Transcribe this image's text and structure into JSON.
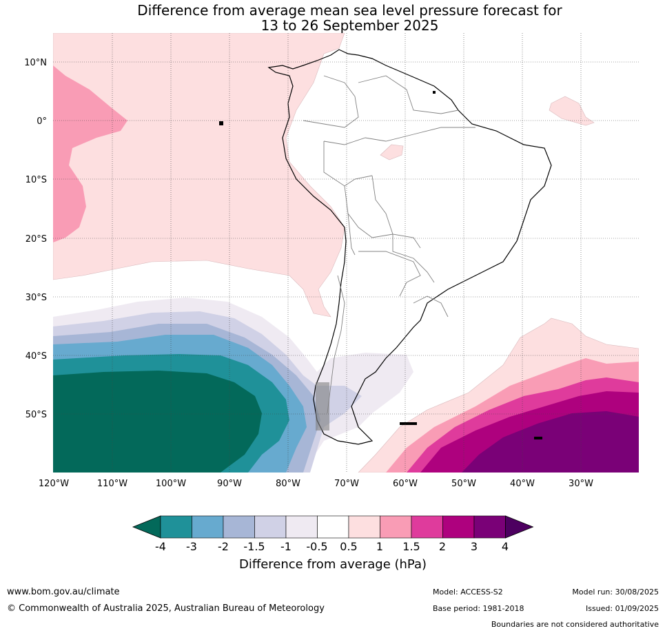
{
  "title": {
    "line1": "Difference from average mean sea level pressure forecast for",
    "line2": "13 to 26 September 2025"
  },
  "axes": {
    "lat_labels": [
      "10°N",
      "0°",
      "10°S",
      "20°S",
      "30°S",
      "40°S",
      "50°S"
    ],
    "lon_labels": [
      "120°W",
      "110°W",
      "100°W",
      "90°W",
      "80°W",
      "70°W",
      "60°W",
      "50°W",
      "40°W",
      "30°W"
    ]
  },
  "colorbar": {
    "labels": [
      "-4",
      "-3",
      "-2",
      "-1.5",
      "-1",
      "-0.5",
      "0.5",
      "1",
      "1.5",
      "2",
      "3",
      "4"
    ],
    "colors": [
      "#03695a",
      "#1f9199",
      "#67aacf",
      "#a7b6d6",
      "#d0d1e6",
      "#efeaf2",
      "#ffffff",
      "#fddfe0",
      "#f99cb5",
      "#df3b9c",
      "#ae017e",
      "#7a0177",
      "#4d0060"
    ],
    "title": "Difference from average (hPa)"
  },
  "footer": {
    "url": "www.bom.gov.au/climate",
    "copyright": "© Commonwealth of Australia 2025, Australian Bureau of Meteorology",
    "model": "Model: ACCESS-S2",
    "base_period": "Base period: 1981-2018",
    "model_run": "Model run: 30/08/2025",
    "issued": "Issued: 01/09/2025",
    "boundaries": "Boundaries are not considered authoritative"
  }
}
